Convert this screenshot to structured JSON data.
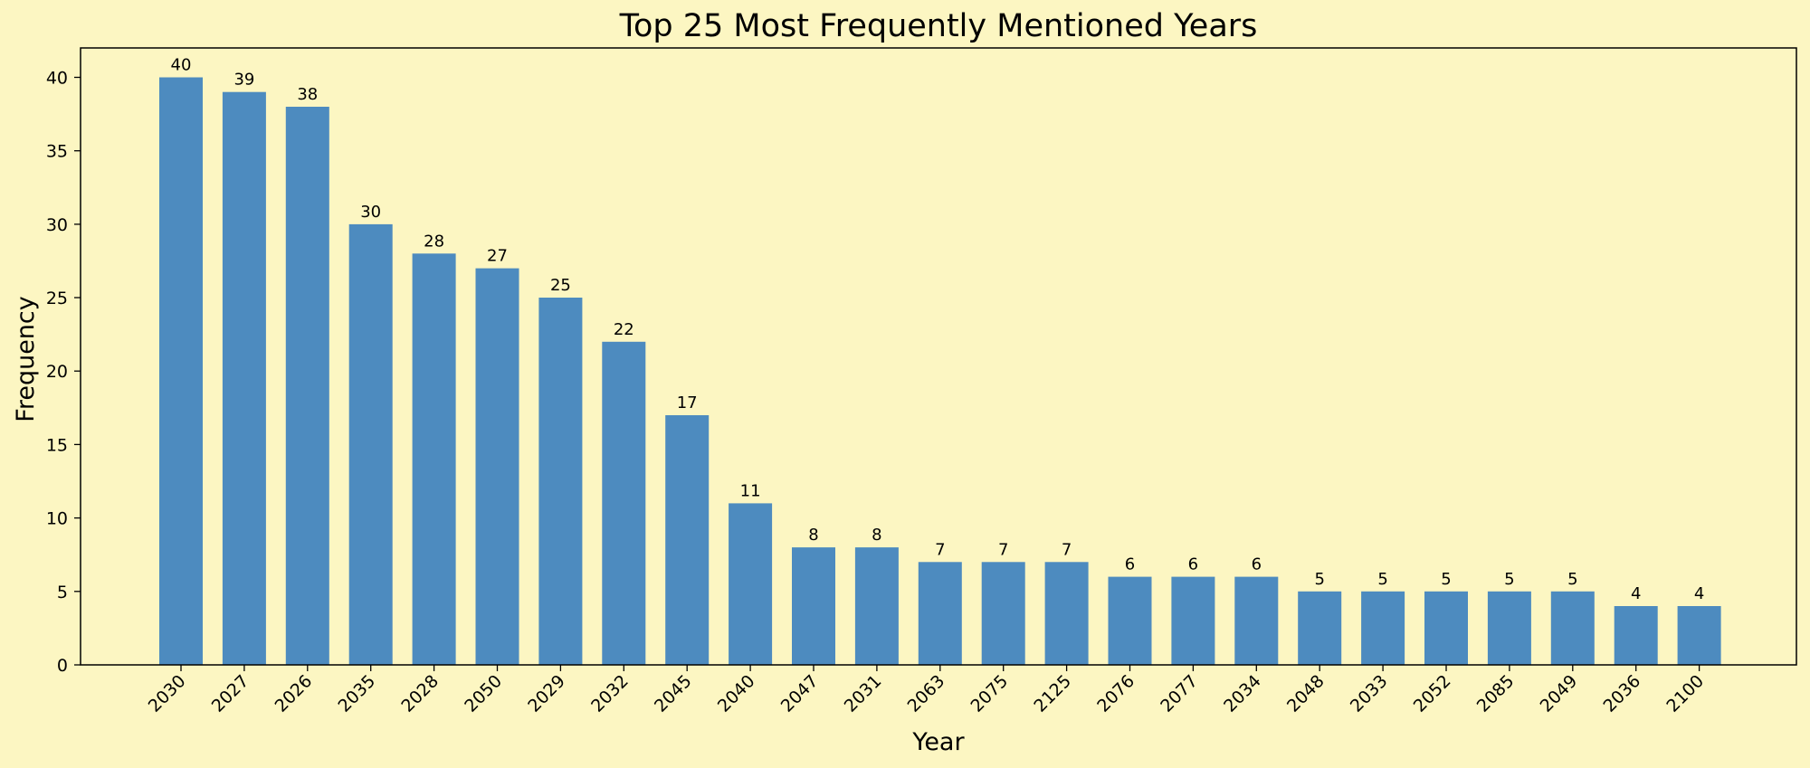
{
  "chart_data": {
    "type": "bar",
    "title": "Top 25 Most Frequently Mentioned Years",
    "xlabel": "Year",
    "ylabel": "Frequency",
    "categories": [
      "2030",
      "2027",
      "2026",
      "2035",
      "2028",
      "2050",
      "2029",
      "2032",
      "2045",
      "2040",
      "2047",
      "2031",
      "2063",
      "2075",
      "2125",
      "2076",
      "2077",
      "2034",
      "2048",
      "2033",
      "2052",
      "2085",
      "2049",
      "2036",
      "2100"
    ],
    "values": [
      40,
      39,
      38,
      30,
      28,
      27,
      25,
      22,
      17,
      11,
      8,
      8,
      7,
      7,
      7,
      6,
      6,
      6,
      5,
      5,
      5,
      5,
      5,
      4,
      4
    ],
    "ylim": [
      0,
      42
    ],
    "yticks": [
      0,
      5,
      10,
      15,
      20,
      25,
      30,
      35,
      40
    ],
    "grid": false,
    "legend": "none",
    "data_labels": true,
    "colors": {
      "background": "#fcf6c2",
      "plot_background": "#fcf6c2",
      "bar": "#4d8bbf",
      "axis": "#000000",
      "text": "#000000"
    }
  }
}
